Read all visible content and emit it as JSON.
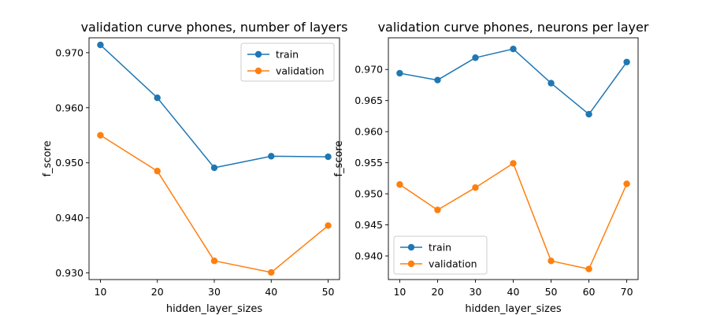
{
  "chart_data": [
    {
      "type": "line",
      "title": "validation curve phones, number of layers",
      "xlabel": "hidden_layer_sizes",
      "ylabel": "f_score",
      "x": [
        10,
        20,
        30,
        40,
        50
      ],
      "xticks": [
        10,
        20,
        30,
        40,
        50
      ],
      "yticks": [
        0.93,
        0.94,
        0.95,
        0.96,
        0.97
      ],
      "xlim": [
        8,
        52
      ],
      "ylim": [
        0.9288,
        0.9727
      ],
      "legend_position": "upper right",
      "series": [
        {
          "name": "train",
          "color": "#1f77b4",
          "values": [
            0.9714,
            0.9618,
            0.9491,
            0.9512,
            0.9511
          ]
        },
        {
          "name": "validation",
          "color": "#ff7f0e",
          "values": [
            0.955,
            0.9485,
            0.9322,
            0.9301,
            0.9386
          ]
        }
      ]
    },
    {
      "type": "line",
      "title": "validation curve phones, neurons per layer",
      "xlabel": "hidden_layer_sizes",
      "ylabel": "f_score",
      "x": [
        10,
        20,
        30,
        40,
        50,
        60,
        70
      ],
      "xticks": [
        10,
        20,
        30,
        40,
        50,
        60,
        70
      ],
      "yticks": [
        0.94,
        0.945,
        0.95,
        0.955,
        0.96,
        0.965,
        0.97
      ],
      "xlim": [
        7,
        73
      ],
      "ylim": [
        0.9362,
        0.9751
      ],
      "legend_position": "lower left",
      "series": [
        {
          "name": "train",
          "color": "#1f77b4",
          "values": [
            0.9694,
            0.9683,
            0.9719,
            0.9733,
            0.9678,
            0.9628,
            0.9712
          ]
        },
        {
          "name": "validation",
          "color": "#ff7f0e",
          "values": [
            0.9515,
            0.9474,
            0.951,
            0.9549,
            0.9392,
            0.9379,
            0.9516
          ]
        }
      ]
    }
  ]
}
